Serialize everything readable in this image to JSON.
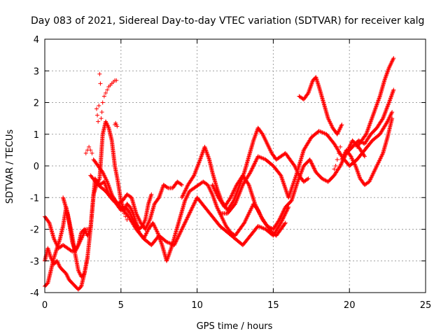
{
  "chart_data": {
    "type": "scatter",
    "title": "Day 083 of 2021, Sidereal Day-to-day VTEC variation (SDTVAR) for receiver kalg",
    "xlabel": "GPS time / hours",
    "ylabel": "SDTVAR / TECUs",
    "xlim": [
      0,
      25
    ],
    "ylim": [
      -4,
      4
    ],
    "x_ticks": [
      "0",
      "5",
      "10",
      "15",
      "20",
      "25"
    ],
    "y_ticks": [
      "-4",
      "-3",
      "-2",
      "-1",
      "0",
      "1",
      "2",
      "3",
      "4"
    ],
    "grid": true,
    "marker": "+",
    "colors": {
      "series": "#ff0000",
      "grid": "#a0a0a0",
      "axes": "#000000"
    },
    "tracks": [
      {
        "x": [
          0.0,
          0.3,
          0.6,
          0.9,
          1.2,
          1.5,
          1.8,
          2.1,
          2.4,
          2.7,
          3.0,
          3.3,
          3.6,
          3.9,
          4.2,
          4.5,
          4.8,
          5.1,
          5.4,
          5.7,
          6.0,
          6.3,
          6.6,
          6.9,
          7.2,
          7.5,
          7.8,
          8.1,
          8.4,
          8.7,
          9.0
        ],
        "y": [
          -1.6,
          -1.8,
          -2.3,
          -2.6,
          -2.5,
          -2.6,
          -2.7,
          -2.6,
          -2.3,
          -2.0,
          -2.0,
          -0.4,
          -0.6,
          -0.5,
          -0.9,
          -1.0,
          -1.2,
          -1.1,
          -0.9,
          -1.0,
          -1.5,
          -1.8,
          -2.0,
          -1.7,
          -1.2,
          -1.0,
          -0.6,
          -0.7,
          -0.7,
          -0.5,
          -0.6
        ]
      },
      {
        "x": [
          0.0,
          0.2,
          0.4,
          0.6,
          0.8,
          1.0,
          1.2,
          1.4,
          1.6,
          1.8,
          2.0,
          2.2,
          2.4,
          2.6,
          2.8,
          3.0,
          3.2,
          3.4,
          3.6,
          3.8,
          4.0,
          4.2,
          4.4,
          4.6,
          4.8,
          5.0,
          5.2,
          5.4,
          5.6,
          5.8,
          6.0,
          6.2,
          6.4,
          6.6,
          6.8,
          7.0
        ],
        "y": [
          -3.8,
          -3.7,
          -3.3,
          -2.9,
          -2.6,
          -2.3,
          -1.9,
          -1.3,
          -1.8,
          -2.4,
          -2.7,
          -2.5,
          -2.1,
          -2.0,
          -2.2,
          -2.0,
          -0.9,
          -0.6,
          -0.4,
          1.0,
          1.4,
          1.2,
          0.8,
          0.0,
          -0.5,
          -1.1,
          -1.4,
          -1.2,
          -1.3,
          -1.5,
          -1.8,
          -2.0,
          -1.9,
          -1.7,
          -1.2,
          -0.9
        ]
      },
      {
        "x": [
          0.0,
          0.2,
          0.4,
          0.6,
          0.8,
          1.0,
          1.2,
          1.4,
          1.6,
          1.8,
          2.0,
          2.2,
          2.4,
          2.6,
          2.8
        ],
        "y": [
          -3.0,
          -2.6,
          -2.9,
          -3.1,
          -3.0,
          -3.2,
          -3.3,
          -3.4,
          -3.6,
          -3.7,
          -3.8,
          -3.9,
          -3.8,
          -3.4,
          -2.9
        ]
      },
      {
        "x": [
          1.2,
          1.5,
          1.8,
          2.0,
          2.2,
          2.4,
          2.6,
          2.8,
          3.0
        ],
        "y": [
          -1.0,
          -1.5,
          -2.2,
          -2.8,
          -3.3,
          -3.5,
          -3.4,
          -2.9,
          -2.0
        ]
      },
      {
        "x": [
          3.2,
          3.5,
          3.8,
          4.1,
          4.4,
          4.7,
          5.0,
          5.3,
          5.6,
          5.9,
          6.2,
          6.5,
          6.8,
          7.1,
          7.4,
          7.7,
          8.0,
          8.3,
          8.6,
          8.9,
          9.2,
          9.5,
          9.8,
          10.1,
          10.4,
          10.7,
          11.0,
          11.3,
          11.6,
          11.9,
          12.2,
          12.5,
          12.8,
          13.1,
          13.4,
          13.7,
          14.0,
          14.3,
          14.6,
          14.9,
          15.2,
          15.5,
          15.8
        ],
        "y": [
          0.2,
          0.0,
          -0.2,
          -0.5,
          -0.9,
          -1.2,
          -1.4,
          -1.3,
          -1.5,
          -1.8,
          -2.1,
          -2.3,
          -2.0,
          -1.8,
          -2.1,
          -2.5,
          -3.0,
          -2.6,
          -2.1,
          -1.6,
          -1.1,
          -0.8,
          -0.7,
          -0.6,
          -0.5,
          -0.6,
          -0.9,
          -1.3,
          -1.6,
          -1.9,
          -2.1,
          -2.2,
          -2.0,
          -1.8,
          -1.5,
          -1.2,
          -1.4,
          -1.7,
          -1.9,
          -2.1,
          -2.2,
          -2.0,
          -1.8
        ]
      },
      {
        "x": [
          3.0,
          3.5,
          4.0,
          4.5,
          5.0,
          5.5,
          6.0,
          6.5,
          7.0,
          7.5,
          8.0,
          8.5,
          9.0,
          9.5,
          10.0,
          10.5,
          11.0,
          11.5,
          12.0,
          12.5,
          13.0,
          13.5,
          14.0,
          14.5,
          15.0,
          15.5,
          16.0
        ],
        "y": [
          -0.3,
          -0.6,
          -0.8,
          -1.1,
          -1.3,
          -1.6,
          -2.0,
          -2.3,
          -2.5,
          -2.2,
          -2.4,
          -2.5,
          -2.0,
          -1.5,
          -1.0,
          -1.3,
          -1.6,
          -1.9,
          -2.1,
          -2.3,
          -2.5,
          -2.2,
          -1.9,
          -2.0,
          -2.2,
          -1.8,
          -1.3
        ]
      },
      {
        "x": [
          9.0,
          9.4,
          9.8,
          10.2,
          10.5,
          10.8,
          11.0,
          11.3,
          11.6,
          12.0,
          12.4,
          12.8,
          13.1,
          13.4,
          13.7,
          14.0,
          14.3,
          14.6,
          14.9,
          15.2,
          15.5,
          15.8,
          16.1,
          16.4,
          16.7,
          17.0,
          17.3
        ],
        "y": [
          -1.0,
          -0.6,
          -0.3,
          0.2,
          0.6,
          0.2,
          -0.2,
          -0.7,
          -1.1,
          -1.4,
          -1.1,
          -0.6,
          -0.2,
          0.3,
          0.8,
          1.2,
          1.0,
          0.7,
          0.4,
          0.2,
          0.3,
          0.4,
          0.2,
          0.0,
          -0.3,
          -0.5,
          -0.4
        ]
      },
      {
        "x": [
          11.0,
          11.4,
          11.8,
          12.2,
          12.6,
          13.0,
          13.4,
          13.8,
          14.2,
          14.6,
          15.0,
          15.4,
          15.8,
          16.2,
          16.6,
          17.0,
          17.4,
          17.8,
          18.2,
          18.6,
          19.0,
          19.4,
          19.8,
          20.2,
          20.6,
          21.0
        ],
        "y": [
          -0.6,
          -1.0,
          -1.3,
          -1.0,
          -0.6,
          -0.3,
          -0.6,
          -1.2,
          -1.6,
          -1.9,
          -2.0,
          -1.7,
          -1.3,
          -1.1,
          -0.5,
          0.0,
          0.2,
          -0.2,
          -0.4,
          -0.5,
          -0.3,
          0.0,
          0.4,
          0.8,
          0.6,
          0.3
        ]
      },
      {
        "x": [
          11.5,
          12.0,
          12.5,
          13.0,
          13.5,
          14.0,
          14.5,
          15.0,
          15.5,
          16.0,
          16.5,
          17.0,
          17.5,
          18.0,
          18.5,
          19.0,
          19.5,
          20.0,
          20.5,
          21.0,
          21.5,
          22.0,
          22.5,
          22.8
        ],
        "y": [
          -1.5,
          -1.5,
          -1.2,
          -0.6,
          -0.2,
          0.3,
          0.2,
          0.0,
          -0.3,
          -1.0,
          -0.3,
          0.5,
          0.9,
          1.1,
          1.0,
          0.7,
          0.3,
          0.0,
          0.2,
          0.5,
          0.8,
          1.0,
          1.4,
          1.7
        ]
      },
      {
        "x": [
          16.7,
          17.0,
          17.3,
          17.6,
          17.8,
          18.0,
          18.3,
          18.6,
          18.9,
          19.2,
          19.5
        ],
        "y": [
          2.2,
          2.1,
          2.3,
          2.7,
          2.8,
          2.5,
          2.0,
          1.5,
          1.2,
          1.0,
          1.3
        ]
      },
      {
        "x": [
          19.5,
          19.8,
          20.1,
          20.4,
          20.7,
          21.0,
          21.3,
          21.6,
          21.9,
          22.2,
          22.5,
          22.8
        ],
        "y": [
          0.2,
          0.5,
          0.3,
          0.0,
          -0.4,
          -0.6,
          -0.5,
          -0.2,
          0.1,
          0.4,
          0.9,
          1.5
        ]
      },
      {
        "x": [
          20.5,
          20.8,
          21.1,
          21.4,
          21.7,
          22.0,
          22.3,
          22.6,
          22.9
        ],
        "y": [
          0.6,
          0.8,
          1.0,
          1.4,
          1.8,
          2.2,
          2.7,
          3.1,
          3.4
        ]
      },
      {
        "x": [
          19.8,
          20.2,
          20.6,
          21.0,
          21.4,
          21.8,
          22.2,
          22.6,
          22.9
        ],
        "y": [
          0.4,
          0.6,
          0.8,
          0.7,
          1.0,
          1.2,
          1.5,
          2.0,
          2.4
        ]
      }
    ],
    "clusters": [
      {
        "x": [
          3.4,
          3.45,
          3.5,
          3.55,
          3.6,
          3.65,
          3.7,
          3.75
        ],
        "y": [
          1.8,
          1.6,
          1.4,
          1.9,
          2.9,
          2.6,
          1.5,
          1.7
        ]
      },
      {
        "x": [
          3.8,
          3.9,
          4.0,
          4.1,
          4.2,
          4.3,
          4.4,
          4.5,
          4.6,
          4.7
        ],
        "y": [
          2.0,
          2.2,
          2.3,
          2.4,
          2.5,
          2.55,
          2.6,
          2.65,
          2.7,
          2.7
        ]
      },
      {
        "x": [
          4.6,
          4.65,
          4.7,
          4.75
        ],
        "y": [
          1.3,
          1.35,
          1.3,
          1.25
        ]
      },
      {
        "x": [
          5.1,
          5.2,
          5.3,
          5.4
        ],
        "y": [
          -1.4,
          -1.5,
          -1.6,
          -1.7
        ]
      },
      {
        "x": [
          2.7,
          2.8,
          2.9,
          3.0,
          3.1
        ],
        "y": [
          0.4,
          0.5,
          0.6,
          0.5,
          0.4
        ]
      },
      {
        "x": [
          19.0,
          19.1,
          19.2,
          19.3,
          19.4
        ],
        "y": [
          -0.1,
          0.0,
          0.2,
          0.4,
          0.6
        ]
      }
    ]
  }
}
